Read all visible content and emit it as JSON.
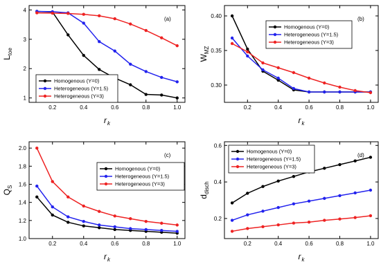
{
  "chart_data": [
    {
      "type": "line",
      "panel_label": "(a)",
      "xlabel": "r",
      "xlabel_sub": "k",
      "ylabel": "L",
      "ylabel_sub": "toe",
      "x": [
        0.1,
        0.2,
        0.3,
        0.4,
        0.5,
        0.6,
        0.7,
        0.8,
        0.9,
        1.0
      ],
      "xlim": [
        0.05,
        1.05
      ],
      "ylim": [
        0.85,
        4.15
      ],
      "xticks": [
        "0.2",
        "0.4",
        "0.6",
        "0.8",
        "1.0"
      ],
      "yticks": [
        "1",
        "2",
        "3",
        "4"
      ],
      "legend": "bottom-left",
      "series": [
        {
          "name": "Homogenous (Υ=0)",
          "color": "#000000",
          "values": [
            3.95,
            3.93,
            3.15,
            2.45,
            1.97,
            1.68,
            1.45,
            1.12,
            1.1,
            1.0
          ]
        },
        {
          "name": "Heterogeneous (Υ=1.5)",
          "color": "#2222ee",
          "values": [
            3.95,
            3.94,
            3.9,
            3.55,
            2.92,
            2.6,
            2.15,
            1.9,
            1.7,
            1.55
          ]
        },
        {
          "name": "Heterogeneous (Υ=3)",
          "color": "#ee2222",
          "values": [
            3.9,
            3.89,
            3.88,
            3.85,
            3.8,
            3.7,
            3.52,
            3.3,
            3.05,
            2.78
          ]
        }
      ]
    },
    {
      "type": "line",
      "panel_label": "(b)",
      "xlabel": "r",
      "xlabel_sub": "k",
      "ylabel": "W",
      "ylabel_sub": "MZ",
      "x": [
        0.1,
        0.2,
        0.3,
        0.4,
        0.5,
        0.6,
        0.7,
        0.8,
        0.9,
        1.0
      ],
      "xlim": [
        0.05,
        1.05
      ],
      "ylim": [
        0.275,
        0.415
      ],
      "xticks": [
        "0.2",
        "0.4",
        "0.6",
        "0.8",
        "1.0"
      ],
      "yticks": [
        "0.30",
        "0.35",
        "0.40"
      ],
      "legend": "top-right",
      "series": [
        {
          "name": "Homogenous (Υ=0)",
          "color": "#000000",
          "values": [
            0.4,
            0.352,
            0.32,
            0.307,
            0.293,
            0.29,
            0.29,
            0.29,
            0.29,
            0.29
          ]
        },
        {
          "name": "Heterogeneous (Υ=1.5)",
          "color": "#2222ee",
          "values": [
            0.368,
            0.342,
            0.322,
            0.31,
            0.295,
            0.29,
            0.29,
            0.29,
            0.29,
            0.29
          ]
        },
        {
          "name": "Heterogeneous (Υ=3)",
          "color": "#ee2222",
          "values": [
            0.36,
            0.348,
            0.332,
            0.325,
            0.318,
            0.31,
            0.303,
            0.297,
            0.292,
            0.289
          ]
        }
      ]
    },
    {
      "type": "line",
      "panel_label": "(c)",
      "xlabel": "r",
      "xlabel_sub": "k",
      "ylabel": "Q",
      "ylabel_sub": "S",
      "x": [
        0.1,
        0.2,
        0.3,
        0.4,
        0.5,
        0.6,
        0.7,
        0.8,
        0.9,
        1.0
      ],
      "xlim": [
        0.05,
        1.05
      ],
      "ylim": [
        1.0,
        2.07
      ],
      "xticks": [
        "0.2",
        "0.4",
        "0.6",
        "0.8",
        "1.0"
      ],
      "yticks": [
        "1.0",
        "1.2",
        "1.4",
        "1.6",
        "1.8",
        "2.0"
      ],
      "legend": "top-right",
      "series": [
        {
          "name": "Homogenous (Υ=0)",
          "color": "#000000",
          "values": [
            1.46,
            1.26,
            1.18,
            1.14,
            1.12,
            1.1,
            1.09,
            1.08,
            1.07,
            1.06
          ]
        },
        {
          "name": "Heterogeneous (Υ=1.5)",
          "color": "#2222ee",
          "values": [
            1.58,
            1.35,
            1.24,
            1.19,
            1.15,
            1.13,
            1.11,
            1.1,
            1.09,
            1.08
          ]
        },
        {
          "name": "Heterogeneous (Υ=3)",
          "color": "#ee2222",
          "values": [
            2.0,
            1.63,
            1.46,
            1.36,
            1.3,
            1.25,
            1.22,
            1.19,
            1.17,
            1.15
          ]
        }
      ]
    },
    {
      "type": "line",
      "panel_label": "(d)",
      "xlabel": "r",
      "xlabel_sub": "k",
      "ylabel": "d",
      "ylabel_sub": "disch",
      "x": [
        0.1,
        0.2,
        0.3,
        0.4,
        0.5,
        0.6,
        0.7,
        0.8,
        0.9,
        1.0
      ],
      "xlim": [
        0.05,
        1.05
      ],
      "ylim": [
        0.09,
        0.62
      ],
      "xticks": [
        "0.2",
        "0.4",
        "0.6",
        "0.8",
        "1.0"
      ],
      "yticks": [
        "0.2",
        "0.4",
        "0.6"
      ],
      "legend": "top-left",
      "series": [
        {
          "name": "Homogenous (Υ=0)",
          "color": "#000000",
          "values": [
            0.285,
            0.338,
            0.375,
            0.405,
            0.43,
            0.455,
            0.475,
            0.495,
            0.515,
            0.535
          ]
        },
        {
          "name": "Heterogeneous (Υ=1.5)",
          "color": "#2222ee",
          "values": [
            0.19,
            0.22,
            0.24,
            0.26,
            0.28,
            0.295,
            0.31,
            0.325,
            0.34,
            0.355
          ]
        },
        {
          "name": "Heterogeneous (Υ=3)",
          "color": "#ee2222",
          "values": [
            0.13,
            0.145,
            0.155,
            0.165,
            0.175,
            0.18,
            0.19,
            0.197,
            0.205,
            0.215
          ]
        }
      ]
    }
  ]
}
